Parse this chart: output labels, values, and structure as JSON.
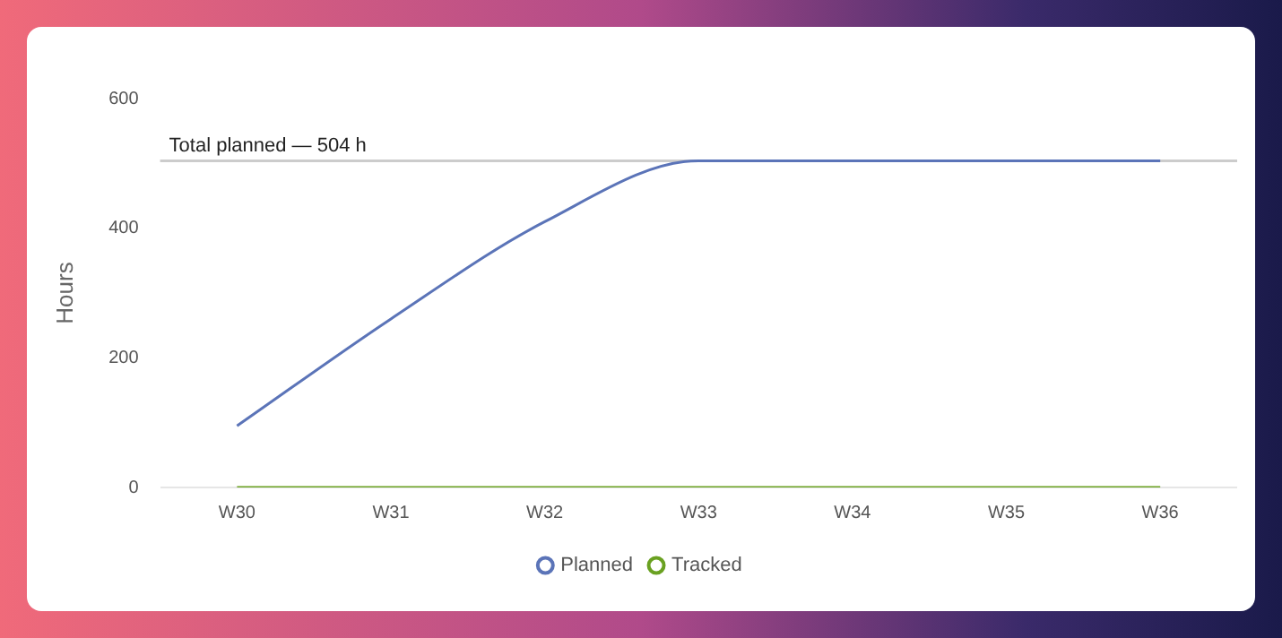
{
  "chart_data": {
    "type": "line",
    "ylabel": "Hours",
    "categories": [
      "W30",
      "W31",
      "W32",
      "W33",
      "W34",
      "W35",
      "W36"
    ],
    "series": [
      {
        "name": "Planned",
        "color": "#5b74b8",
        "values": [
          95,
          260,
          410,
          504,
          504,
          504,
          504
        ]
      },
      {
        "name": "Tracked",
        "color": "#6aa121",
        "values": [
          0,
          0,
          0,
          0,
          0,
          0,
          0
        ]
      }
    ],
    "ylim": [
      0,
      600
    ],
    "yticks": [
      0,
      200,
      400,
      600
    ],
    "grid": false,
    "legend": "bottom",
    "ref_lines": [
      {
        "axis": "y",
        "value": 504,
        "label": "Total planned — 504 h",
        "color": "#cccccc"
      }
    ]
  }
}
